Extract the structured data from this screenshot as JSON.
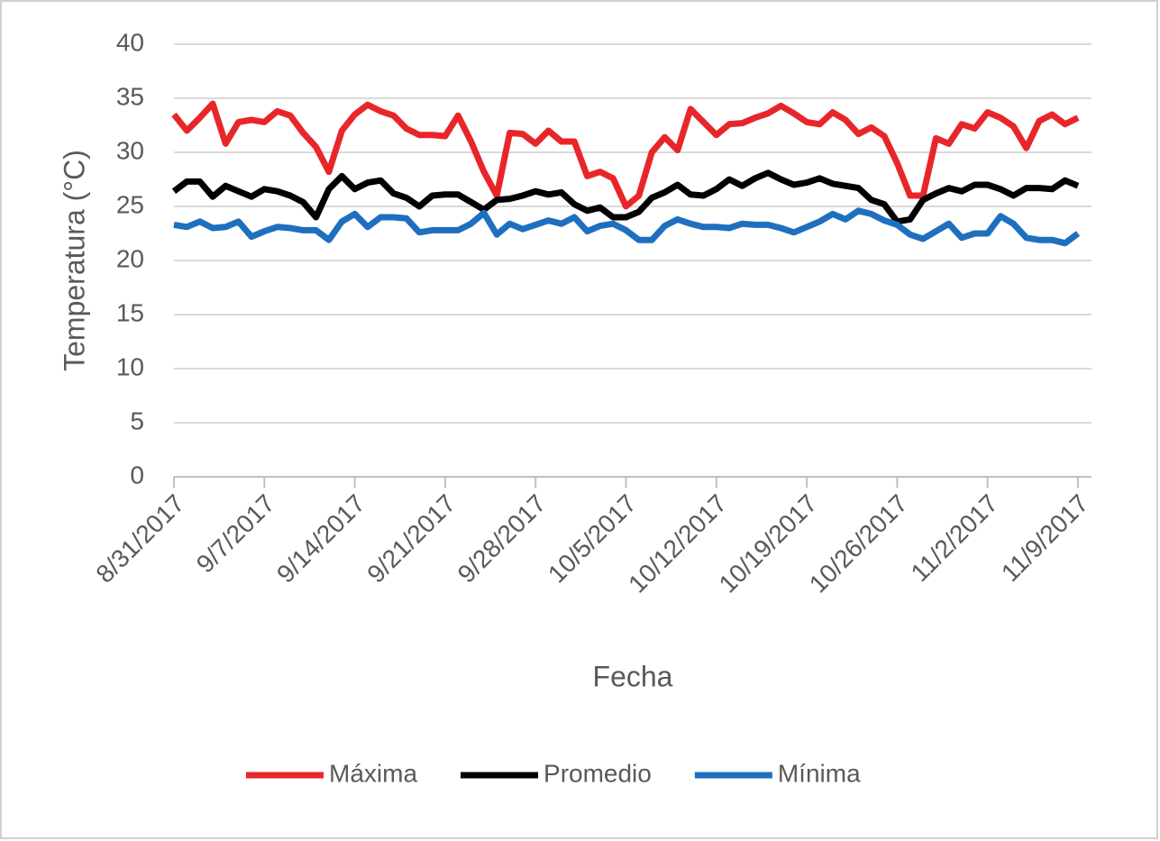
{
  "chart_data": {
    "type": "line",
    "x_label": "Fecha",
    "y_label": "Temperatura (°C)",
    "x": [
      "8/31/2017",
      "9/1/2017",
      "9/2/2017",
      "9/3/2017",
      "9/4/2017",
      "9/5/2017",
      "9/6/2017",
      "9/7/2017",
      "9/8/2017",
      "9/9/2017",
      "9/10/2017",
      "9/11/2017",
      "9/12/2017",
      "9/13/2017",
      "9/14/2017",
      "9/15/2017",
      "9/16/2017",
      "9/17/2017",
      "9/18/2017",
      "9/19/2017",
      "9/20/2017",
      "9/21/2017",
      "9/22/2017",
      "9/23/2017",
      "9/24/2017",
      "9/25/2017",
      "9/26/2017",
      "9/27/2017",
      "9/28/2017",
      "9/29/2017",
      "9/30/2017",
      "10/1/2017",
      "10/2/2017",
      "10/3/2017",
      "10/4/2017",
      "10/5/2017",
      "10/6/2017",
      "10/7/2017",
      "10/8/2017",
      "10/9/2017",
      "10/10/2017",
      "10/11/2017",
      "10/12/2017",
      "10/13/2017",
      "10/14/2017",
      "10/15/2017",
      "10/16/2017",
      "10/17/2017",
      "10/18/2017",
      "10/19/2017",
      "10/20/2017",
      "10/21/2017",
      "10/22/2017",
      "10/23/2017",
      "10/24/2017",
      "10/25/2017",
      "10/26/2017",
      "10/27/2017",
      "10/28/2017",
      "10/29/2017",
      "10/30/2017",
      "10/31/2017",
      "11/1/2017",
      "11/2/2017",
      "11/3/2017",
      "11/4/2017",
      "11/5/2017",
      "11/6/2017",
      "11/7/2017",
      "11/8/2017",
      "11/9/2017"
    ],
    "series": [
      {
        "name": "Máxima",
        "color": "#e8262a",
        "values": [
          33.5,
          32,
          33.2,
          34.5,
          30.8,
          32.8,
          33,
          32.8,
          33.8,
          33.4,
          31.8,
          30.5,
          28.2,
          32,
          33.5,
          34.4,
          33.8,
          33.4,
          32.2,
          31.6,
          31.6,
          31.5,
          33.4,
          31,
          28.2,
          26,
          31.8,
          31.7,
          30.8,
          32,
          31,
          31,
          27.8,
          28.2,
          27.6,
          25,
          26,
          30,
          31.4,
          30.2,
          34,
          32.8,
          31.6,
          32.6,
          32.7,
          33.2,
          33.6,
          34.3,
          33.6,
          32.8,
          32.6,
          33.7,
          33,
          31.7,
          32.3,
          31.5,
          29,
          26,
          26,
          31.3,
          30.8,
          32.6,
          32.2,
          33.7,
          33.2,
          32.4,
          30.4,
          32.9,
          33.5,
          32.6,
          33.2
        ]
      },
      {
        "name": "Promedio",
        "color": "#000000",
        "values": [
          26.4,
          27.3,
          27.3,
          25.9,
          26.9,
          26.4,
          25.9,
          26.6,
          26.4,
          26,
          25.4,
          24,
          26.6,
          27.8,
          26.6,
          27.2,
          27.4,
          26.2,
          25.8,
          25,
          26,
          26.1,
          26.1,
          25.4,
          24.7,
          25.6,
          25.7,
          26,
          26.4,
          26.1,
          26.3,
          25.2,
          24.6,
          24.9,
          24,
          24,
          24.5,
          25.8,
          26.3,
          27,
          26.1,
          26,
          26.6,
          27.5,
          26.9,
          27.6,
          28.1,
          27.5,
          27,
          27.2,
          27.6,
          27.1,
          26.9,
          26.7,
          25.6,
          25.2,
          23.6,
          23.8,
          25.6,
          26.2,
          26.7,
          26.4,
          27,
          27,
          26.6,
          26,
          26.7,
          26.7,
          26.6,
          27.4,
          26.9
        ]
      },
      {
        "name": "Mínima",
        "color": "#1f6fbf",
        "values": [
          23.3,
          23.1,
          23.6,
          23,
          23.1,
          23.6,
          22.2,
          22.7,
          23.1,
          23,
          22.8,
          22.8,
          21.9,
          23.6,
          24.3,
          23.1,
          24,
          24,
          23.9,
          22.6,
          22.8,
          22.8,
          22.8,
          23.4,
          24.4,
          22.4,
          23.4,
          22.9,
          23.3,
          23.7,
          23.4,
          24,
          22.7,
          23.2,
          23.4,
          22.8,
          21.9,
          21.9,
          23.2,
          23.8,
          23.4,
          23.1,
          23.1,
          23,
          23.4,
          23.3,
          23.3,
          23,
          22.6,
          23.1,
          23.6,
          24.3,
          23.8,
          24.6,
          24.3,
          23.7,
          23.3,
          22.4,
          22,
          22.7,
          23.4,
          22.1,
          22.5,
          22.5,
          24.1,
          23.4,
          22.1,
          21.9,
          21.9,
          21.6,
          22.5
        ]
      }
    ],
    "xlim": [
      "8/31/2017",
      "11/9/2017"
    ],
    "xticks": [
      "8/31/2017",
      "9/7/2017",
      "9/14/2017",
      "9/21/2017",
      "9/28/2017",
      "10/5/2017",
      "10/12/2017",
      "10/19/2017",
      "10/26/2017",
      "11/2/2017",
      "11/9/2017"
    ],
    "ylim": [
      0,
      40
    ],
    "yticks": [
      0,
      5,
      10,
      15,
      20,
      25,
      30,
      35,
      40
    ],
    "grid": true,
    "legend": "bottom"
  }
}
